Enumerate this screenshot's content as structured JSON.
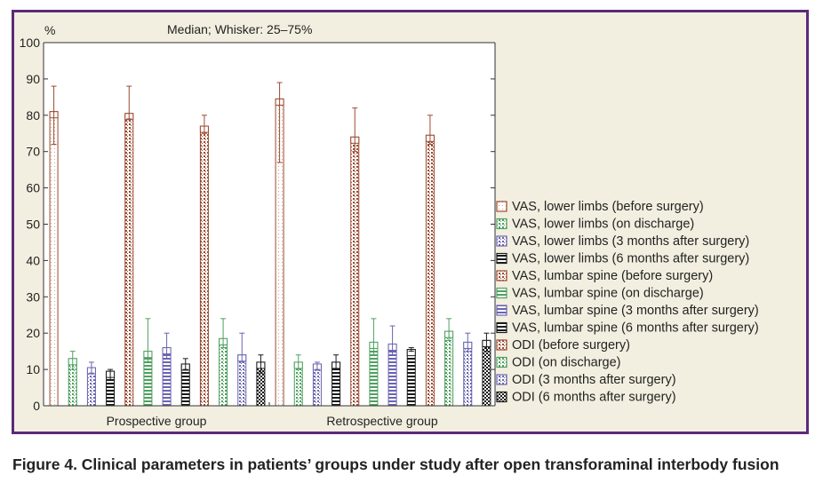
{
  "caption": "Figure 4. Clinical parameters in patients’ groups under study after open transforaminal interbody fusion",
  "colors": {
    "frame": "#5b2a7a",
    "panel": "#f3efe0",
    "plot_bg": "#ffffff"
  },
  "chart_data": {
    "type": "bar",
    "subtitle": "Median; Whisker: 25–75%",
    "ylabel": "%",
    "ylim": [
      0,
      100
    ],
    "yticks": [
      0,
      10,
      20,
      30,
      40,
      50,
      60,
      70,
      80,
      90,
      100
    ],
    "grid": false,
    "legend_position": "right",
    "categories": [
      "Prospective group",
      "Retrospective group"
    ],
    "series": [
      {
        "name": "VAS, lower limbs (before surgery)",
        "color": "#ffffff",
        "pattern": "dots-sparse",
        "values": [
          81,
          84.5
        ],
        "q1": [
          72,
          67
        ],
        "q3": [
          88,
          89
        ]
      },
      {
        "name": "VAS, lower limbs (on discharge)",
        "color": "#4fa060",
        "pattern": "dots",
        "values": [
          13,
          12
        ],
        "q1": [
          10,
          10
        ],
        "q3": [
          15,
          14
        ]
      },
      {
        "name": "VAS, lower limbs (3 months after surgery)",
        "color": "#6a64b0",
        "pattern": "dots",
        "values": [
          10.5,
          11.5
        ],
        "q1": [
          9,
          10
        ],
        "q3": [
          12,
          12
        ]
      },
      {
        "name": "VAS, lower limbs (6 months after surgery)",
        "color": "#1a1a1a",
        "pattern": "hlines",
        "values": [
          9.5,
          12
        ],
        "q1": [
          7,
          10
        ],
        "q3": [
          10,
          14
        ]
      },
      {
        "name": "VAS, lumbar spine (before surgery)",
        "color": "#9b4a30",
        "pattern": "dots",
        "values": [
          80.5,
          74
        ],
        "q1": [
          79,
          70
        ],
        "q3": [
          88,
          82
        ]
      },
      {
        "name": "VAS, lumbar spine (on discharge)",
        "color": "#4fa060",
        "pattern": "hlines",
        "values": [
          15,
          17.5
        ],
        "q1": [
          12,
          14
        ],
        "q3": [
          24,
          24
        ]
      },
      {
        "name": "VAS, lumbar spine (3 months after surgery)",
        "color": "#6a64b0",
        "pattern": "hlines",
        "values": [
          16,
          17
        ],
        "q1": [
          13,
          14
        ],
        "q3": [
          20,
          22
        ]
      },
      {
        "name": "VAS, lumbar spine (6 months after surgery)",
        "color": "#1a1a1a",
        "pattern": "hlines",
        "values": [
          11.5,
          15.5
        ],
        "q1": [
          10,
          15
        ],
        "q3": [
          13,
          16
        ]
      },
      {
        "name": "ODI (before surgery)",
        "color": "#9b4a30",
        "pattern": "dots",
        "values": [
          77,
          74.5
        ],
        "q1": [
          75,
          72
        ],
        "q3": [
          80,
          80
        ]
      },
      {
        "name": "ODI (on discharge)",
        "color": "#4fa060",
        "pattern": "dots",
        "values": [
          18.5,
          20.5
        ],
        "q1": [
          16,
          18
        ],
        "q3": [
          24,
          24
        ]
      },
      {
        "name": "ODI (3 months after surgery)",
        "color": "#6a64b0",
        "pattern": "dots",
        "values": [
          14,
          17.5
        ],
        "q1": [
          12,
          15
        ],
        "q3": [
          20,
          20
        ]
      },
      {
        "name": "ODI (6 months after surgery)",
        "color": "#1a1a1a",
        "pattern": "checker",
        "values": [
          12,
          18
        ],
        "q1": [
          9,
          15
        ],
        "q3": [
          14,
          20
        ]
      }
    ]
  }
}
